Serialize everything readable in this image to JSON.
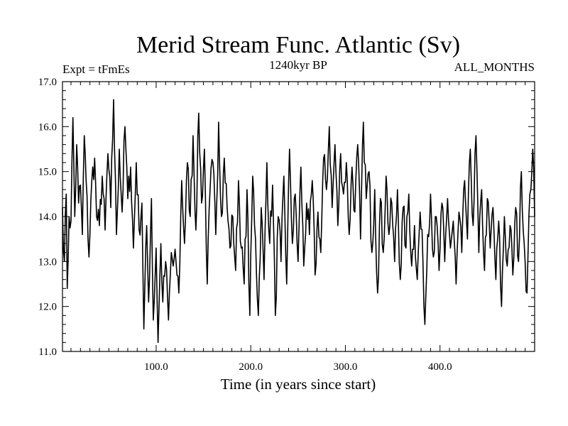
{
  "chart_data": {
    "type": "line",
    "title": "Merid Stream Func. Atlantic (Sv)",
    "subtitle_left": "Expt = tFmEs",
    "subtitle_center": "1240kyr BP",
    "subtitle_right": "ALL_MONTHS",
    "xlabel": "Time (in years since start)",
    "ylabel": "",
    "xlim": [
      1,
      500
    ],
    "ylim": [
      11.0,
      17.0
    ],
    "x_ticks": [
      100,
      200,
      300,
      400
    ],
    "x_tick_labels": [
      "100.0",
      "200.0",
      "300.0",
      "400.0"
    ],
    "y_ticks": [
      11,
      12,
      13,
      14,
      15,
      16,
      17
    ],
    "y_tick_labels": [
      "11.0",
      "12.0",
      "13.0",
      "14.0",
      "15.0",
      "16.0",
      "17.0"
    ],
    "x_start": 1,
    "x_step": 1,
    "series": [
      {
        "name": "Merid Stream Func. Atlantic",
        "color": "#000000",
        "anchors": [
          [
            1,
            14.2
          ],
          [
            3,
            13.0
          ],
          [
            5,
            14.5
          ],
          [
            6,
            12.4
          ],
          [
            8,
            14.0
          ],
          [
            10,
            13.9
          ],
          [
            12,
            16.2
          ],
          [
            14,
            14.0
          ],
          [
            16,
            15.6
          ],
          [
            18,
            14.3
          ],
          [
            20,
            14.7
          ],
          [
            22,
            13.6
          ],
          [
            24,
            15.8
          ],
          [
            26,
            14.8
          ],
          [
            29,
            13.1
          ],
          [
            32,
            14.8
          ],
          [
            35,
            15.3
          ],
          [
            37,
            14.0
          ],
          [
            40,
            13.8
          ],
          [
            43,
            14.9
          ],
          [
            46,
            13.7
          ],
          [
            49,
            15.4
          ],
          [
            52,
            14.2
          ],
          [
            55,
            16.6
          ],
          [
            58,
            13.6
          ],
          [
            61,
            15.5
          ],
          [
            64,
            14.1
          ],
          [
            67,
            16.0
          ],
          [
            70,
            14.4
          ],
          [
            73,
            15.1
          ],
          [
            76,
            13.3
          ],
          [
            79,
            15.2
          ],
          [
            82,
            13.7
          ],
          [
            85,
            14.3
          ],
          [
            87,
            11.5
          ],
          [
            90,
            13.8
          ],
          [
            92,
            12.1
          ],
          [
            95,
            14.4
          ],
          [
            97,
            11.7
          ],
          [
            100,
            13.3
          ],
          [
            102,
            11.2
          ],
          [
            105,
            13.4
          ],
          [
            107,
            12.1
          ],
          [
            110,
            13.0
          ],
          [
            113,
            11.7
          ],
          [
            116,
            13.2
          ],
          [
            118,
            12.9
          ],
          [
            121,
            13.0
          ],
          [
            124,
            12.3
          ],
          [
            127,
            14.8
          ],
          [
            130,
            13.4
          ],
          [
            133,
            15.2
          ],
          [
            136,
            14.0
          ],
          [
            139,
            15.8
          ],
          [
            142,
            13.7
          ],
          [
            145,
            16.3
          ],
          [
            148,
            14.3
          ],
          [
            151,
            15.5
          ],
          [
            154,
            12.5
          ],
          [
            157,
            14.6
          ],
          [
            160,
            15.2
          ],
          [
            163,
            13.6
          ],
          [
            166,
            16.1
          ],
          [
            169,
            14.0
          ],
          [
            172,
            15.3
          ],
          [
            175,
            14.2
          ],
          [
            178,
            13.3
          ],
          [
            181,
            14.0
          ],
          [
            184,
            12.8
          ],
          [
            187,
            14.8
          ],
          [
            190,
            13.3
          ],
          [
            193,
            12.5
          ],
          [
            196,
            14.6
          ],
          [
            199,
            11.8
          ],
          [
            202,
            14.9
          ],
          [
            205,
            13.5
          ],
          [
            208,
            11.8
          ],
          [
            211,
            14.2
          ],
          [
            214,
            12.6
          ],
          [
            217,
            15.2
          ],
          [
            220,
            13.4
          ],
          [
            223,
            14.7
          ],
          [
            226,
            11.8
          ],
          [
            229,
            14.0
          ],
          [
            232,
            13.0
          ],
          [
            235,
            14.9
          ],
          [
            238,
            12.5
          ],
          [
            241,
            15.5
          ],
          [
            244,
            13.4
          ],
          [
            247,
            14.5
          ],
          [
            250,
            13.0
          ],
          [
            253,
            15.1
          ],
          [
            256,
            12.9
          ],
          [
            259,
            14.3
          ],
          [
            262,
            13.6
          ],
          [
            265,
            14.8
          ],
          [
            268,
            12.7
          ],
          [
            271,
            14.1
          ],
          [
            274,
            13.2
          ],
          [
            277,
            15.3
          ],
          [
            280,
            14.6
          ],
          [
            283,
            16.0
          ],
          [
            286,
            14.2
          ],
          [
            289,
            15.6
          ],
          [
            292,
            13.8
          ],
          [
            295,
            15.4
          ],
          [
            298,
            14.5
          ],
          [
            301,
            15.2
          ],
          [
            304,
            13.6
          ],
          [
            307,
            15.1
          ],
          [
            310,
            14.1
          ],
          [
            313,
            15.6
          ],
          [
            316,
            13.5
          ],
          [
            319,
            16.1
          ],
          [
            322,
            14.4
          ],
          [
            325,
            15.0
          ],
          [
            328,
            13.2
          ],
          [
            331,
            14.6
          ],
          [
            334,
            12.3
          ],
          [
            337,
            14.4
          ],
          [
            340,
            13.2
          ],
          [
            343,
            14.9
          ],
          [
            346,
            13.6
          ],
          [
            349,
            14.3
          ],
          [
            352,
            13.0
          ],
          [
            355,
            14.6
          ],
          [
            358,
            12.6
          ],
          [
            361,
            14.2
          ],
          [
            364,
            13.3
          ],
          [
            367,
            14.5
          ],
          [
            370,
            12.9
          ],
          [
            373,
            13.8
          ],
          [
            376,
            12.6
          ],
          [
            379,
            14.1
          ],
          [
            382,
            13.0
          ],
          [
            384,
            11.6
          ],
          [
            387,
            13.6
          ],
          [
            390,
            14.5
          ],
          [
            393,
            13.1
          ],
          [
            396,
            14.0
          ],
          [
            399,
            12.8
          ],
          [
            402,
            14.3
          ],
          [
            405,
            13.0
          ],
          [
            408,
            14.4
          ],
          [
            411,
            13.3
          ],
          [
            414,
            13.9
          ],
          [
            417,
            12.5
          ],
          [
            420,
            14.1
          ],
          [
            423,
            13.2
          ],
          [
            426,
            14.8
          ],
          [
            429,
            13.5
          ],
          [
            432,
            15.5
          ],
          [
            435,
            13.8
          ],
          [
            438,
            15.8
          ],
          [
            441,
            13.2
          ],
          [
            444,
            14.6
          ],
          [
            447,
            12.8
          ],
          [
            450,
            14.4
          ],
          [
            453,
            13.3
          ],
          [
            456,
            14.2
          ],
          [
            459,
            12.6
          ],
          [
            462,
            13.9
          ],
          [
            465,
            12.0
          ],
          [
            468,
            14.0
          ],
          [
            471,
            12.9
          ],
          [
            474,
            13.8
          ],
          [
            477,
            12.7
          ],
          [
            480,
            14.2
          ],
          [
            483,
            13.0
          ],
          [
            486,
            15.0
          ],
          [
            489,
            13.4
          ],
          [
            492,
            12.3
          ],
          [
            495,
            14.5
          ],
          [
            498,
            15.5
          ],
          [
            500,
            14.0
          ]
        ]
      }
    ]
  }
}
